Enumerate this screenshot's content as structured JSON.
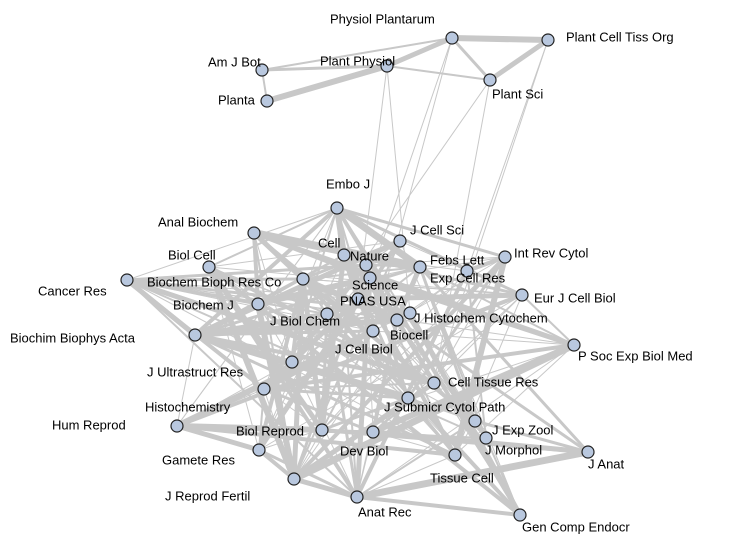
{
  "nodes": [
    {
      "label": "Physiol Plantarum"
    },
    {
      "label": "Plant Cell Tiss Org"
    },
    {
      "label": "Am J Bot"
    },
    {
      "label": "Plant Physiol"
    },
    {
      "label": "Plant Sci"
    },
    {
      "label": "Planta"
    },
    {
      "label": "Embo J"
    },
    {
      "label": "Anal Biochem"
    },
    {
      "label": "J Cell Sci"
    },
    {
      "label": "Biol Cell"
    },
    {
      "label": "Cell"
    },
    {
      "label": "Nature"
    },
    {
      "label": "Febs Lett"
    },
    {
      "label": "Int Rev Cytol"
    },
    {
      "label": "Cancer Res"
    },
    {
      "label": "Biochem Bioph Res Co"
    },
    {
      "label": "Science"
    },
    {
      "label": "Exp Cell Res"
    },
    {
      "label": "Eur J Cell Biol"
    },
    {
      "label": "Biochem J"
    },
    {
      "label": "PNAS USA"
    },
    {
      "label": "Biochim Biophys Acta"
    },
    {
      "label": "J Biol Chem"
    },
    {
      "label": "J Cell Biol"
    },
    {
      "label": "Biocell"
    },
    {
      "label": "J Histochem Cytochem"
    },
    {
      "label": "P Soc Exp Biol Med"
    },
    {
      "label": "J Ultrastruct Res"
    },
    {
      "label": "Cell Tissue Res"
    },
    {
      "label": "Histochemistry"
    },
    {
      "label": "J Submicr Cytol Path"
    },
    {
      "label": "Hum Reprod"
    },
    {
      "label": "Biol Reprod"
    },
    {
      "label": "Dev Biol"
    },
    {
      "label": "J Exp Zool"
    },
    {
      "label": "J Morphol"
    },
    {
      "label": "J Anat"
    },
    {
      "label": "Gamete Res"
    },
    {
      "label": "Tissue Cell"
    },
    {
      "label": "J Reprod Fertil"
    },
    {
      "label": "Anat Rec"
    },
    {
      "label": "Gen Comp Endocr"
    }
  ]
}
